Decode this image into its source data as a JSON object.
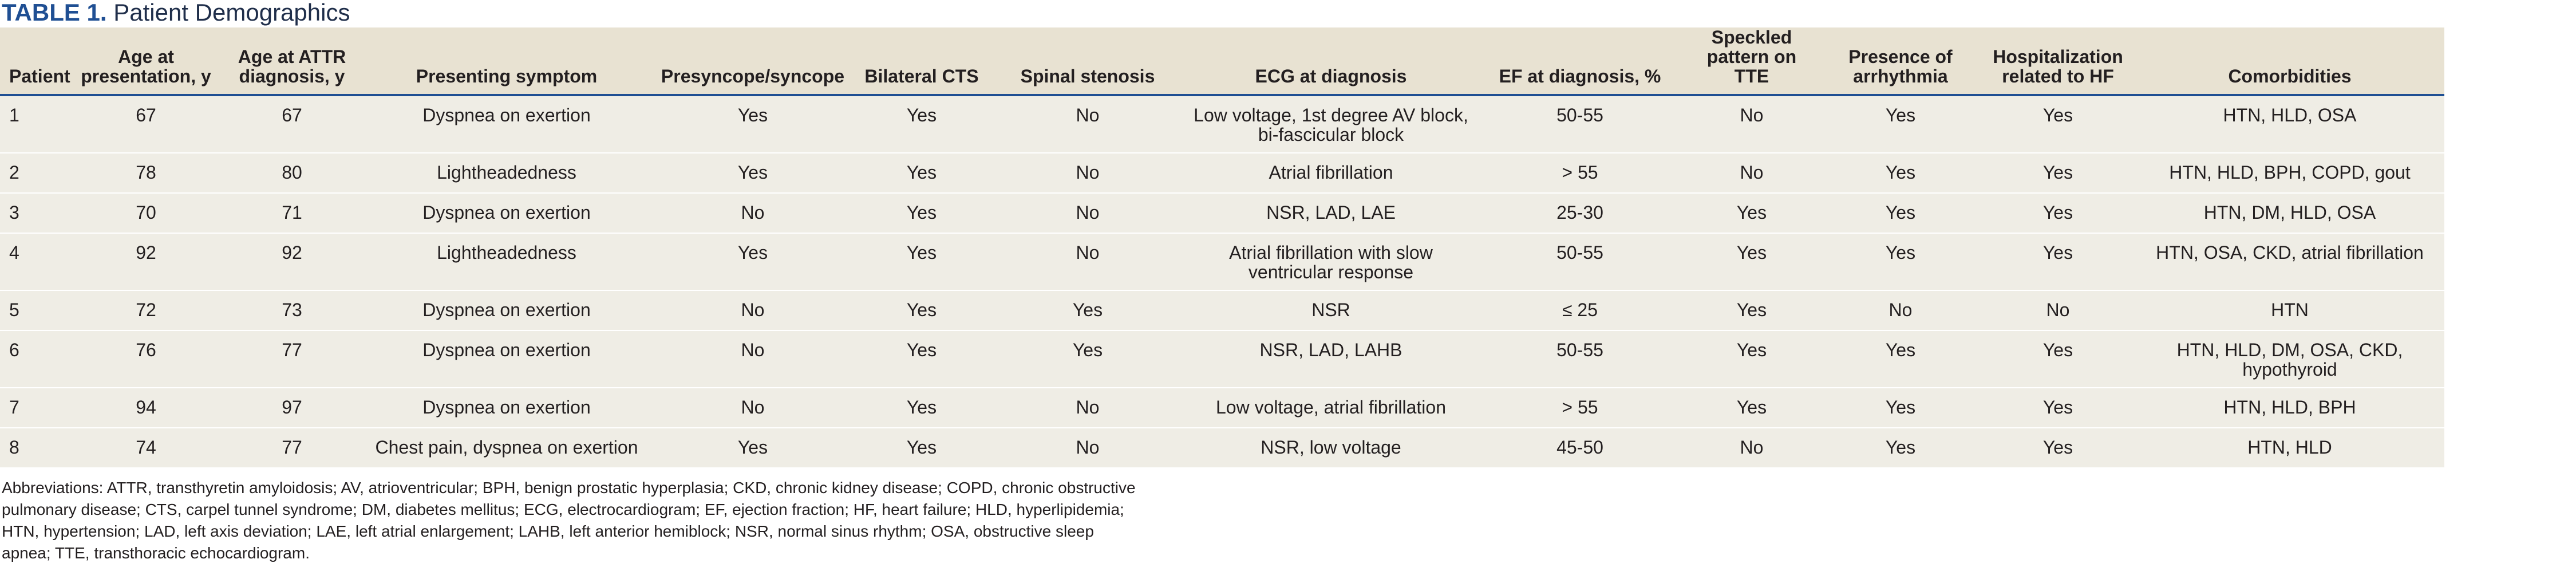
{
  "caption": {
    "label": "TABLE 1.",
    "title": "Patient Demographics"
  },
  "headers": [
    "Patient",
    "Age at presentation, y",
    "Age at ATTR diagnosis, y",
    "Presenting symptom",
    "Presyncope/syncope",
    "Bilateral CTS",
    "Spinal stenosis",
    "ECG at diagnosis",
    "EF at diagnosis, %",
    "Speckled pattern on TTE",
    "Presence of arrhythmia",
    "Hospitalization related to HF",
    "Comorbidities"
  ],
  "rows": [
    [
      "1",
      "67",
      "67",
      "Dyspnea on exertion",
      "Yes",
      "Yes",
      "No",
      "Low voltage, 1st degree AV block, bi-fascicular block",
      "50-55",
      "No",
      "Yes",
      "Yes",
      "HTN, HLD, OSA"
    ],
    [
      "2",
      "78",
      "80",
      "Lightheadedness",
      "Yes",
      "Yes",
      "No",
      "Atrial fibrillation",
      "> 55",
      "No",
      "Yes",
      "Yes",
      "HTN, HLD, BPH, COPD, gout"
    ],
    [
      "3",
      "70",
      "71",
      "Dyspnea on exertion",
      "No",
      "Yes",
      "No",
      "NSR, LAD, LAE",
      "25-30",
      "Yes",
      "Yes",
      "Yes",
      "HTN, DM, HLD, OSA"
    ],
    [
      "4",
      "92",
      "92",
      "Lightheadedness",
      "Yes",
      "Yes",
      "No",
      "Atrial fibrillation with slow ventricular response",
      "50-55",
      "Yes",
      "Yes",
      "Yes",
      "HTN, OSA, CKD, atrial fibrillation"
    ],
    [
      "5",
      "72",
      "73",
      "Dyspnea on exertion",
      "No",
      "Yes",
      "Yes",
      "NSR",
      "≤ 25",
      "Yes",
      "No",
      "No",
      "HTN"
    ],
    [
      "6",
      "76",
      "77",
      "Dyspnea on exertion",
      "No",
      "Yes",
      "Yes",
      "NSR, LAD, LAHB",
      "50-55",
      "Yes",
      "Yes",
      "Yes",
      "HTN, HLD, DM, OSA, CKD, hypothyroid"
    ],
    [
      "7",
      "94",
      "97",
      "Dyspnea on exertion",
      "No",
      "Yes",
      "No",
      "Low voltage, atrial fibrillation",
      "> 55",
      "Yes",
      "Yes",
      "Yes",
      "HTN, HLD, BPH"
    ],
    [
      "8",
      "74",
      "77",
      "Chest pain, dyspnea on exertion",
      "Yes",
      "Yes",
      "No",
      "NSR, low voltage",
      "45-50",
      "No",
      "Yes",
      "Yes",
      "HTN, HLD"
    ]
  ],
  "footnote": "Abbreviations: ATTR, transthyretin amyloidosis; AV, atrioventricular; BPH, benign prostatic hyperplasia; CKD, chronic kidney disease; COPD, chronic obstructive pulmonary disease; CTS, carpel tunnel syndrome; DM, diabetes mellitus; ECG, electrocardiogram; EF, ejection fraction; HF, heart failure; HLD, hyperlipidemia; HTN, hypertension; LAD, left axis deviation; LAE, left atrial enlargement; LAHB, left anterior hemiblock; NSR, normal sinus rhythm; OSA, obstructive sleep apnea; TTE, transthoracic echocardiogram."
}
